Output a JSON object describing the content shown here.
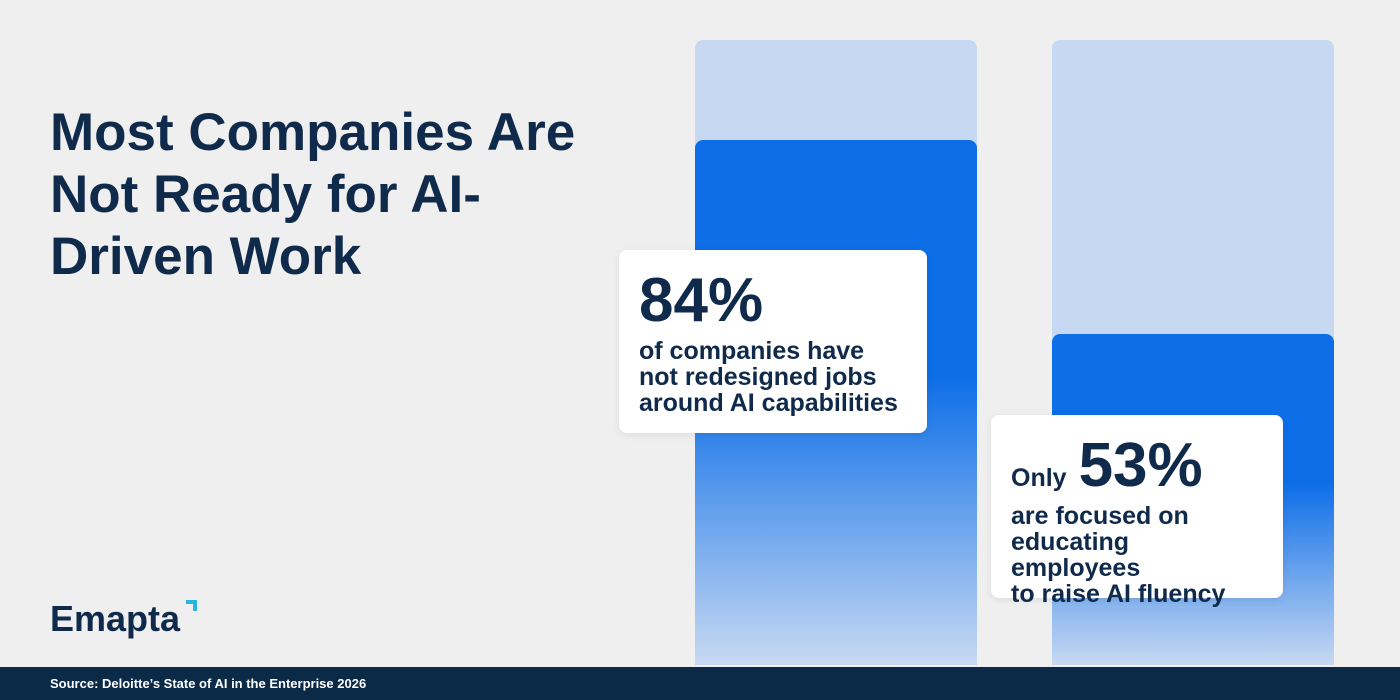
{
  "chart_data": {
    "type": "bar",
    "title": "Most Companies Are Not Ready for AI-Driven Work",
    "values": [
      84,
      53
    ],
    "value_labels": [
      "84%",
      "53%"
    ],
    "ylim": [
      0,
      100
    ],
    "color": "#0d6ee8",
    "track_color": "#c7d9f2",
    "descriptions": [
      {
        "lines": [
          "of companies have",
          "not redesigned jobs",
          "around AI capabilities"
        ]
      },
      {
        "prefix": "Only",
        "lines": [
          "are focused on",
          "educating employees",
          "to raise AI fluency"
        ]
      }
    ]
  },
  "brand": "Emapta",
  "source": "Source: Deloitte’s State of AI in the Enterprise 2026"
}
